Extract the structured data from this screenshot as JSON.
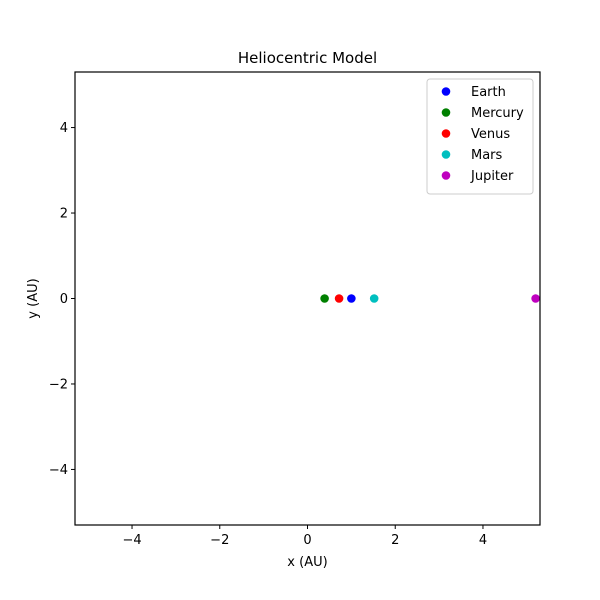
{
  "chart_data": {
    "type": "scatter",
    "title": "Heliocentric Model",
    "xlabel": "x (AU)",
    "ylabel": "y (AU)",
    "xlim": [
      -5.3,
      5.3
    ],
    "ylim": [
      -5.3,
      5.3
    ],
    "xticks": [
      -4,
      -2,
      0,
      2,
      4
    ],
    "yticks": [
      -4,
      -2,
      0,
      2,
      4
    ],
    "xtick_labels": [
      "−4",
      "−2",
      "0",
      "2",
      "4"
    ],
    "ytick_labels": [
      "−4",
      "−2",
      "0",
      "2",
      "4"
    ],
    "grid": false,
    "legend_position": "top-right",
    "series": [
      {
        "name": "Earth",
        "color": "#0000ff",
        "x": [
          1.0
        ],
        "y": [
          0
        ]
      },
      {
        "name": "Mercury",
        "color": "#008000",
        "x": [
          0.39
        ],
        "y": [
          0
        ]
      },
      {
        "name": "Venus",
        "color": "#ff0000",
        "x": [
          0.72
        ],
        "y": [
          0
        ]
      },
      {
        "name": "Mars",
        "color": "#00bfbf",
        "x": [
          1.52
        ],
        "y": [
          0
        ]
      },
      {
        "name": "Jupiter",
        "color": "#bf00bf",
        "x": [
          5.2
        ],
        "y": [
          0
        ]
      }
    ]
  }
}
